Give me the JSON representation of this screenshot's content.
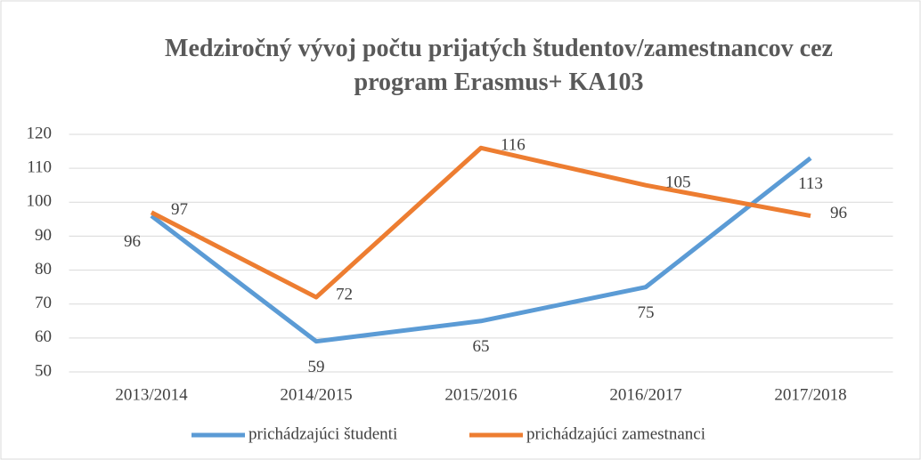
{
  "chart_data": {
    "type": "line",
    "title": "Medziročný vývoj počtu prijatých študentov/zamestnancov cez program Erasmus+ KA103",
    "categories": [
      "2013/2014",
      "2014/2015",
      "2015/2016",
      "2016/2017",
      "2017/2018"
    ],
    "series": [
      {
        "name": "prichádzajúci študenti",
        "color": "#5b9bd5",
        "values": [
          96,
          59,
          65,
          75,
          113
        ]
      },
      {
        "name": "prichádzajúci zamestnanci",
        "color": "#ed7d31",
        "values": [
          97,
          72,
          116,
          105,
          96
        ]
      }
    ],
    "ylim": [
      50,
      120
    ],
    "yticks": [
      50,
      60,
      70,
      80,
      90,
      100,
      110,
      120
    ],
    "grid": true,
    "legend": "bottom"
  }
}
